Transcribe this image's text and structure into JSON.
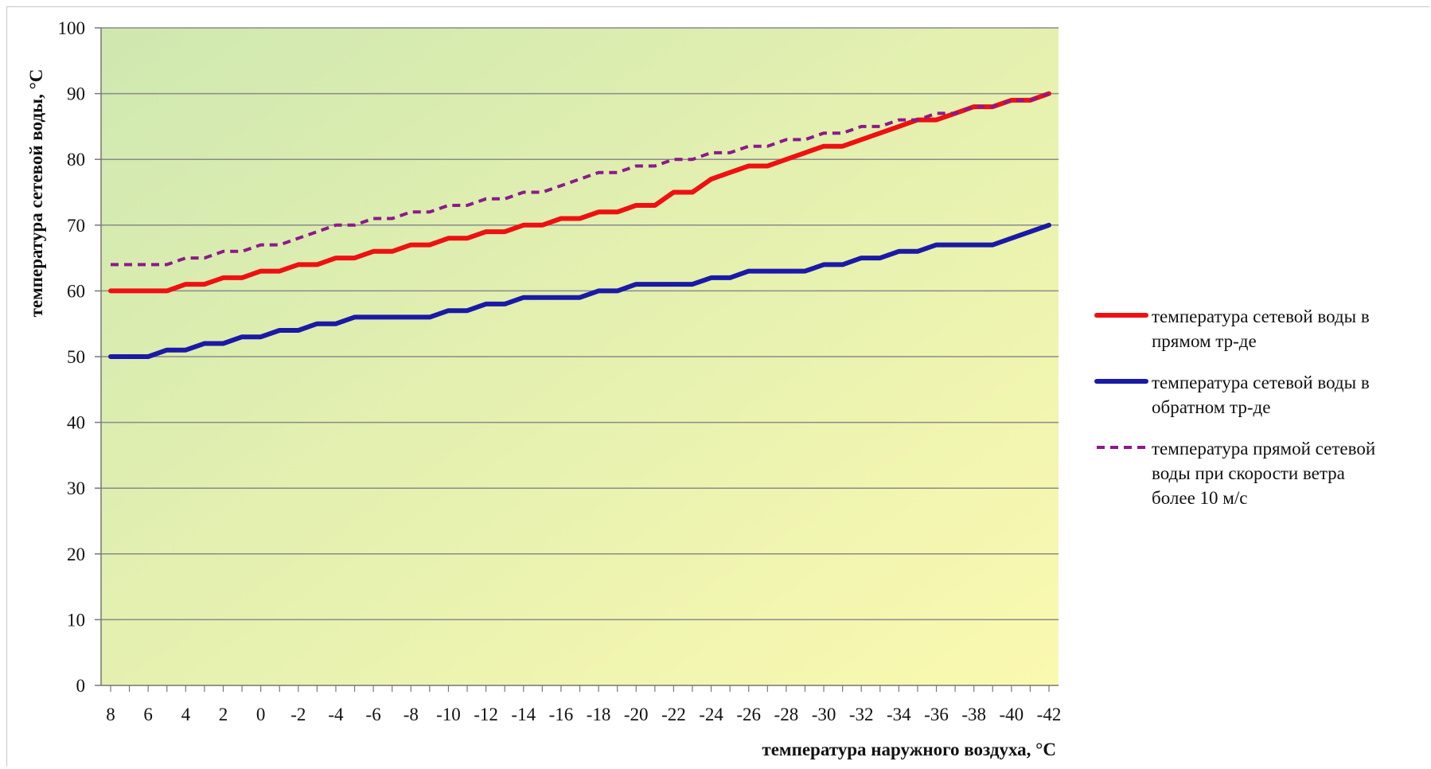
{
  "chart_data": {
    "type": "line",
    "title": "",
    "xlabel": "температура наружного воздуха, °C",
    "ylabel": "температура сетевой воды, °C",
    "ylim": [
      0,
      100
    ],
    "yticks": [
      0,
      10,
      20,
      30,
      40,
      50,
      60,
      70,
      80,
      90,
      100
    ],
    "x": [
      8,
      7,
      6,
      5,
      4,
      3,
      2,
      1,
      0,
      -1,
      -2,
      -3,
      -4,
      -5,
      -6,
      -7,
      -8,
      -9,
      -10,
      -11,
      -12,
      -13,
      -14,
      -15,
      -16,
      -17,
      -18,
      -19,
      -20,
      -21,
      -22,
      -23,
      -24,
      -25,
      -26,
      -27,
      -28,
      -29,
      -30,
      -31,
      -32,
      -33,
      -34,
      -35,
      -36,
      -37,
      -38,
      -39,
      -40,
      -41,
      -42
    ],
    "xticks": [
      "8",
      "6",
      "4",
      "2",
      "0",
      "-2",
      "-4",
      "-6",
      "-8",
      "-10",
      "-12",
      "-14",
      "-16",
      "-18",
      "-20",
      "-22",
      "-24",
      "-26",
      "-28",
      "-30",
      "-32",
      "-34",
      "-36",
      "-38",
      "-40",
      "-42"
    ],
    "grid": true,
    "legend_position": "right",
    "background": {
      "from": "#cfe8b0",
      "to": "#fbf9b0"
    },
    "series": [
      {
        "name": "температура сетевой воды в прямом тр-де",
        "color": "#ee1111",
        "style": "solid",
        "values": [
          60,
          60,
          60,
          60,
          61,
          61,
          62,
          62,
          63,
          63,
          64,
          64,
          65,
          65,
          66,
          66,
          67,
          67,
          68,
          68,
          69,
          69,
          70,
          70,
          71,
          71,
          72,
          72,
          73,
          73,
          75,
          75,
          77,
          78,
          79,
          79,
          80,
          81,
          82,
          82,
          83,
          84,
          85,
          86,
          86,
          87,
          88,
          88,
          89,
          89,
          90
        ]
      },
      {
        "name": "температура сетевой воды в обратном тр-де",
        "color": "#1a1aa6",
        "style": "solid",
        "values": [
          50,
          50,
          50,
          51,
          51,
          52,
          52,
          53,
          53,
          54,
          54,
          55,
          55,
          56,
          56,
          56,
          56,
          56,
          57,
          57,
          58,
          58,
          59,
          59,
          59,
          59,
          60,
          60,
          61,
          61,
          61,
          61,
          62,
          62,
          63,
          63,
          63,
          63,
          64,
          64,
          65,
          65,
          66,
          66,
          67,
          67,
          67,
          67,
          68,
          69,
          70
        ]
      },
      {
        "name": "температура прямой сетевой воды при скорости ветра более 10 м/с",
        "color": "#8b1a8b",
        "style": "dashed",
        "values": [
          64,
          64,
          64,
          64,
          65,
          65,
          66,
          66,
          67,
          67,
          68,
          69,
          70,
          70,
          71,
          71,
          72,
          72,
          73,
          73,
          74,
          74,
          75,
          75,
          76,
          77,
          78,
          78,
          79,
          79,
          80,
          80,
          81,
          81,
          82,
          82,
          83,
          83,
          84,
          84,
          85,
          85,
          86,
          86,
          87,
          87,
          88,
          88,
          89,
          89,
          90
        ]
      }
    ],
    "legend": {
      "items": [
        {
          "lines": [
            "температура сетевой воды в",
            "прямом тр-де"
          ]
        },
        {
          "lines": [
            "температура сетевой воды в",
            "обратном тр-де"
          ]
        },
        {
          "lines": [
            "температура прямой сетевой",
            "воды при скорости ветра",
            "более 10 м/с"
          ]
        }
      ]
    }
  }
}
